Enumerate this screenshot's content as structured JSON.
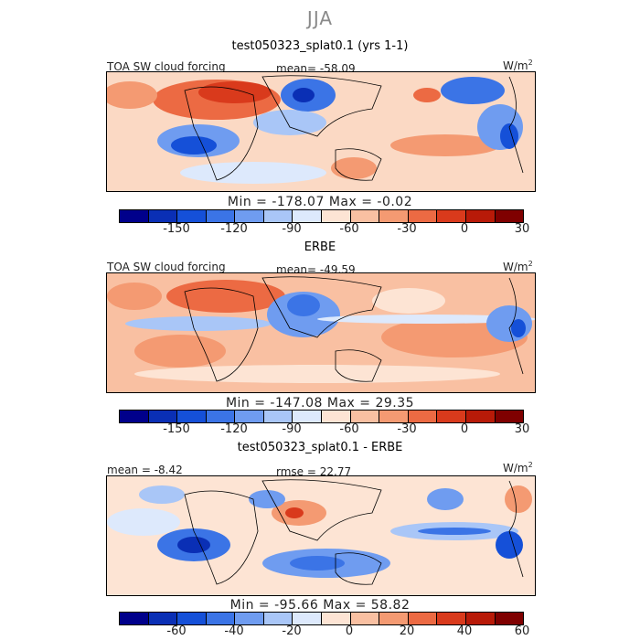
{
  "header": {
    "season": "JJA"
  },
  "panels": [
    {
      "title": "test050323_splat0.1 (yrs 1-1)",
      "left_label": "TOA SW cloud forcing",
      "stat_label": "mean= -58.09",
      "units": "W/m",
      "units_sup": "2",
      "min_max": "Min = -178.07  Max =  -0.02",
      "colorbar_ticks": [
        "-150",
        "-120",
        "-90",
        "-60",
        "-30",
        "0",
        "30"
      ]
    },
    {
      "title": "ERBE",
      "left_label": "TOA SW cloud forcing",
      "stat_label": "mean= -49.59",
      "units": "W/m",
      "units_sup": "2",
      "min_max": "Min = -147.08  Max =  29.35",
      "colorbar_ticks": [
        "-150",
        "-120",
        "-90",
        "-60",
        "-30",
        "0",
        "30"
      ]
    },
    {
      "title": "test050323_splat0.1 - ERBE",
      "left_label": "mean =  -8.42",
      "stat_label": "rmse =  22.77",
      "units": "W/m",
      "units_sup": "2",
      "min_max": "Min = -95.66  Max =  58.82",
      "colorbar_ticks": [
        "-60",
        "-40",
        "-20",
        "0",
        "20",
        "40",
        "60"
      ]
    }
  ],
  "chart_data": [
    {
      "type": "heatmap",
      "title": "test050323_splat0.1 (yrs 1-1)",
      "subtitle": "TOA SW cloud forcing",
      "mean": -58.09,
      "min": -178.07,
      "max": -0.02,
      "units": "W/m2",
      "colorbar_levels": [
        -150,
        -120,
        -90,
        -60,
        -30,
        0,
        30
      ]
    },
    {
      "type": "heatmap",
      "title": "ERBE",
      "subtitle": "TOA SW cloud forcing",
      "mean": -49.59,
      "min": -147.08,
      "max": 29.35,
      "units": "W/m2",
      "colorbar_levels": [
        -150,
        -120,
        -90,
        -60,
        -30,
        0,
        30
      ]
    },
    {
      "type": "heatmap",
      "title": "test050323_splat0.1 - ERBE",
      "mean": -8.42,
      "rmse": 22.77,
      "min": -95.66,
      "max": 58.82,
      "units": "W/m2",
      "colorbar_levels": [
        -60,
        -40,
        -20,
        0,
        20,
        40,
        60
      ]
    }
  ],
  "colors": {
    "colorbar": [
      "#00008b",
      "#0a2fb5",
      "#1550d8",
      "#3b74e6",
      "#6f9cf0",
      "#a9c6f7",
      "#dde9fc",
      "#fde4d4",
      "#f9c0a2",
      "#f49a72",
      "#ec6a43",
      "#d93a1c",
      "#b81a08",
      "#7f0000"
    ]
  }
}
